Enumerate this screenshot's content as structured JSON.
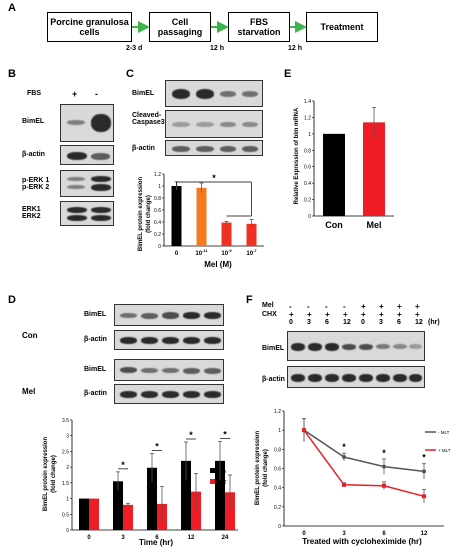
{
  "panels": {
    "a": "A",
    "b": "B",
    "c": "C",
    "d": "D",
    "e": "E",
    "f": "F"
  },
  "flow": {
    "steps": [
      "Porcine granulosa cells",
      "Cell passaging",
      "FBS starvation",
      "Treatment"
    ],
    "durations": [
      "2-3 d",
      "12 h",
      "12 h"
    ]
  },
  "panel_b": {
    "header": "FBS",
    "lanes": [
      "+",
      "-"
    ],
    "rows": [
      "BimEL",
      "β-actin",
      "p-ERK 1\np-ERK 2",
      "ERK1\nERK2"
    ]
  },
  "panel_c": {
    "rows": [
      "BimEL",
      "Cleaved-\nCaspase3",
      "β-actin"
    ],
    "ylabel": "BimEL protein expression\n(fold change)",
    "xlabel": "Mel (M)",
    "significance": "*"
  },
  "panel_d": {
    "groups": [
      "Con",
      "Mel"
    ],
    "rows": [
      "BimEL",
      "β-actin"
    ],
    "ylabel": "BimEL protein expression\n(fold change)",
    "xlabel": "Time (hr)",
    "significance": "*"
  },
  "panel_e": {
    "ylabel": "Relative Expression of bim mRNA"
  },
  "panel_f": {
    "mel_label": "Mel",
    "chx_label": "CHX",
    "unit": "(hr)",
    "mel": [
      "-",
      "-",
      "-",
      "-",
      "+",
      "+",
      "+",
      "+"
    ],
    "chx": [
      "+",
      "+",
      "+",
      "+",
      "+",
      "+",
      "+",
      "+"
    ],
    "times": [
      "0",
      "3",
      "6",
      "12",
      "0",
      "3",
      "6",
      "12"
    ],
    "rows": [
      "BimEL",
      "β-actin"
    ],
    "ylabel": "BimEL protein expression\n(fold change)",
    "xlabel": "Treated with cycloheximide (hr)",
    "significance": "*"
  },
  "chart_data": [
    {
      "id": "C",
      "type": "bar",
      "categories": [
        "0",
        "10-11",
        "10-9",
        "10-7"
      ],
      "values": [
        1.0,
        0.97,
        0.39,
        0.37
      ],
      "errors": [
        0.07,
        0.08,
        0.02,
        0.07
      ],
      "colors": [
        "#000000",
        "#f47a20",
        "#ee3124",
        "#ee3124"
      ],
      "ylim": [
        0,
        1.2
      ],
      "yticks": [
        "0",
        "0.2",
        "0.4",
        "0.6",
        "0.8",
        "1",
        "1.2"
      ],
      "xlabel": "Mel (M)",
      "ylabel": "BimEL protein expression (fold change)"
    },
    {
      "id": "E",
      "type": "bar",
      "categories": [
        "Con",
        "Mel"
      ],
      "values": [
        1.0,
        1.14
      ],
      "errors": [
        0.0,
        0.18
      ],
      "colors": [
        "#000000",
        "#ee1c24"
      ],
      "ylim": [
        0,
        1.4
      ],
      "yticks": [
        "0",
        "0.2",
        "0.4",
        "0.6",
        "0.8",
        "1",
        "1.2",
        "1.4"
      ],
      "ylabel": "Relative Expression of bim mRNA"
    },
    {
      "id": "D",
      "type": "bar",
      "categories": [
        "0",
        "3",
        "6",
        "12",
        "24"
      ],
      "series": [
        {
          "name": "Con",
          "values": [
            1.0,
            1.55,
            1.98,
            2.2,
            2.2
          ],
          "errors": [
            0,
            0.3,
            0.45,
            0.6,
            0.62
          ],
          "color": "#000000"
        },
        {
          "name": "MLT",
          "values": [
            1.0,
            0.8,
            0.83,
            1.22,
            1.2
          ],
          "errors": [
            0,
            0.05,
            0.55,
            0.58,
            0.55
          ],
          "color": "#ee1c24"
        }
      ],
      "ylim": [
        0,
        3.5
      ],
      "yticks": [
        "0",
        "0.5",
        "1",
        "1.5",
        "2",
        "2.5",
        "3",
        "3.5"
      ],
      "xlabel": "Time (hr)",
      "ylabel": "BimEL protein expression (fold change)"
    },
    {
      "id": "F",
      "type": "line",
      "x": [
        "0",
        "3",
        "6",
        "12"
      ],
      "series": [
        {
          "name": "- MLT",
          "values": [
            1.0,
            0.72,
            0.62,
            0.57
          ],
          "errors": [
            0.12,
            0.04,
            0.08,
            0.08
          ],
          "color": "#555555"
        },
        {
          "name": "+ MLT",
          "values": [
            1.0,
            0.43,
            0.42,
            0.31
          ],
          "errors": [
            0.12,
            0.02,
            0.04,
            0.07
          ],
          "color": "#ee1c24"
        }
      ],
      "ylim": [
        0,
        1.2
      ],
      "yticks": [
        "0",
        "0.2",
        "0.4",
        "0.6",
        "0.8",
        "1",
        "1.2"
      ],
      "xlabel": "Treated with cycloheximide (hr)",
      "ylabel": "BimEL protein expression (fold change)"
    }
  ]
}
